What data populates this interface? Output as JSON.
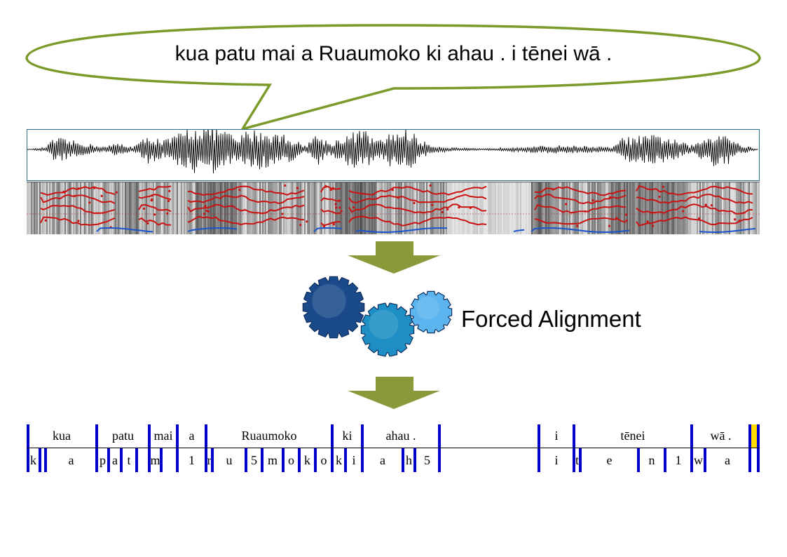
{
  "speech_bubble": {
    "text": "kua patu mai a Ruaumoko ki ahau . i tēnei wā ."
  },
  "process": {
    "label": "Forced Alignment"
  },
  "colors": {
    "bubble_border": "#7a9a2a",
    "arrow": "#8a9a3a",
    "gear_dark": "#1a4a8a",
    "gear_mid": "#1d8fc4",
    "gear_light": "#5bb4ee",
    "formant": "#cc1111",
    "pitch": "#1a55cc",
    "boundary": "#0000cc",
    "cursor": "#ffdd00"
  },
  "icons": {
    "gears": "gears-icon",
    "arrows": "down-arrow-icon"
  },
  "alignment": {
    "words": [
      {
        "text": "kua",
        "start": 0.0,
        "end": 0.096
      },
      {
        "text": "patu",
        "start": 0.096,
        "end": 0.167
      },
      {
        "text": "mai",
        "start": 0.167,
        "end": 0.206
      },
      {
        "text": "a",
        "start": 0.206,
        "end": 0.245
      },
      {
        "text": "Ruaumoko",
        "start": 0.245,
        "end": 0.417
      },
      {
        "text": "ki",
        "start": 0.417,
        "end": 0.458
      },
      {
        "text": "ahau .",
        "start": 0.458,
        "end": 0.563
      },
      {
        "text": "",
        "start": 0.563,
        "end": 0.699
      },
      {
        "text": "i",
        "start": 0.699,
        "end": 0.747
      },
      {
        "text": "tēnei",
        "start": 0.747,
        "end": 0.907
      },
      {
        "text": "wā .",
        "start": 0.907,
        "end": 0.987
      },
      {
        "text": "",
        "start": 0.987,
        "end": 1.0
      }
    ],
    "phones": [
      {
        "text": "k",
        "start": 0.0,
        "end": 0.018
      },
      {
        "text": "",
        "start": 0.018,
        "end": 0.026
      },
      {
        "text": "a",
        "start": 0.026,
        "end": 0.096
      },
      {
        "text": "p",
        "start": 0.096,
        "end": 0.112
      },
      {
        "text": "a",
        "start": 0.112,
        "end": 0.129
      },
      {
        "text": "t",
        "start": 0.129,
        "end": 0.15
      },
      {
        "text": "",
        "start": 0.15,
        "end": 0.167
      },
      {
        "text": "m",
        "start": 0.167,
        "end": 0.184
      },
      {
        "text": "",
        "start": 0.184,
        "end": 0.206
      },
      {
        "text": "1",
        "start": 0.206,
        "end": 0.245
      },
      {
        "text": "r",
        "start": 0.245,
        "end": 0.253
      },
      {
        "text": "u",
        "start": 0.253,
        "end": 0.299
      },
      {
        "text": "5",
        "start": 0.299,
        "end": 0.321
      },
      {
        "text": "m",
        "start": 0.321,
        "end": 0.35
      },
      {
        "text": "o",
        "start": 0.35,
        "end": 0.372
      },
      {
        "text": "k",
        "start": 0.372,
        "end": 0.394
      },
      {
        "text": "o",
        "start": 0.394,
        "end": 0.417
      },
      {
        "text": "k",
        "start": 0.417,
        "end": 0.435
      },
      {
        "text": "i",
        "start": 0.435,
        "end": 0.458
      },
      {
        "text": "a",
        "start": 0.458,
        "end": 0.513
      },
      {
        "text": "h",
        "start": 0.513,
        "end": 0.53
      },
      {
        "text": "5",
        "start": 0.53,
        "end": 0.563
      },
      {
        "text": "",
        "start": 0.563,
        "end": 0.699
      },
      {
        "text": "i",
        "start": 0.699,
        "end": 0.747
      },
      {
        "text": "t",
        "start": 0.747,
        "end": 0.755
      },
      {
        "text": "e",
        "start": 0.755,
        "end": 0.835
      },
      {
        "text": "n",
        "start": 0.835,
        "end": 0.871
      },
      {
        "text": "1",
        "start": 0.871,
        "end": 0.907
      },
      {
        "text": "w",
        "start": 0.907,
        "end": 0.925
      },
      {
        "text": "a",
        "start": 0.925,
        "end": 0.987
      },
      {
        "text": "",
        "start": 0.987,
        "end": 1.0
      }
    ]
  }
}
